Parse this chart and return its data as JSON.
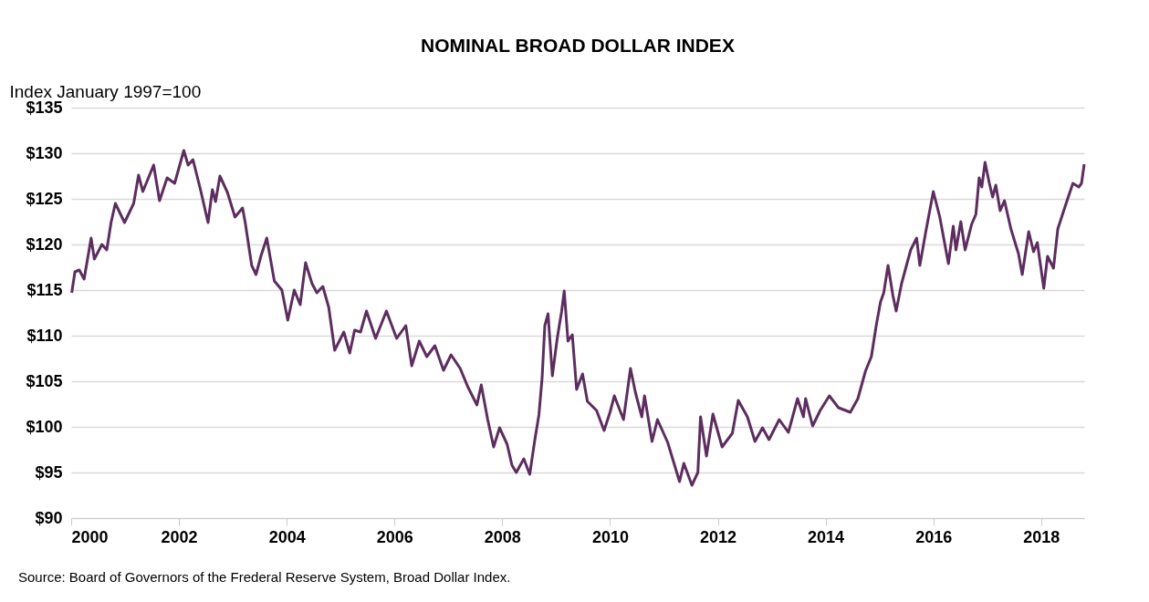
{
  "chart_data": {
    "type": "line",
    "title": "NOMINAL BROAD DOLLAR INDEX",
    "ylabel": "Index January 1997=100",
    "annotations": [
      "Source: Board of Governors of the Frederal Reserve System, Broad Dollar Index."
    ],
    "xlim": [
      2000,
      2018.8
    ],
    "xticks": [
      2000,
      2002,
      2004,
      2006,
      2008,
      2010,
      2012,
      2014,
      2016,
      2018
    ],
    "ylim": [
      90,
      135
    ],
    "yticks": [
      {
        "value": 90,
        "label": "$90"
      },
      {
        "value": 95,
        "label": "$95"
      },
      {
        "value": 100,
        "label": "$100"
      },
      {
        "value": 105,
        "label": "$105"
      },
      {
        "value": 110,
        "label": "$110"
      },
      {
        "value": 115,
        "label": "$115"
      },
      {
        "value": 120,
        "label": "$120"
      },
      {
        "value": 125,
        "label": "$125"
      },
      {
        "value": 130,
        "label": "$130"
      },
      {
        "value": 135,
        "label": "$135"
      }
    ],
    "grid": "y",
    "legend": false,
    "marker": "none",
    "line_style": "solid",
    "series": [
      {
        "color": "#5c2d5e",
        "x": [
          2000.01,
          2000.07,
          2000.15,
          2000.24,
          2000.37,
          2000.43,
          2000.57,
          2000.66,
          2000.74,
          2000.82,
          2000.99,
          2001.16,
          2001.25,
          2001.33,
          2001.53,
          2001.64,
          2001.78,
          2001.92,
          2002.09,
          2002.17,
          2002.26,
          2002.4,
          2002.54,
          2002.62,
          2002.68,
          2002.76,
          2002.9,
          2003.04,
          2003.18,
          2003.23,
          2003.35,
          2003.43,
          2003.52,
          2003.63,
          2003.77,
          2003.91,
          2004.02,
          2004.14,
          2004.25,
          2004.35,
          2004.47,
          2004.56,
          2004.67,
          2004.78,
          2004.89,
          2005.06,
          2005.17,
          2005.26,
          2005.37,
          2005.48,
          2005.65,
          2005.85,
          2006.04,
          2006.21,
          2006.32,
          2006.46,
          2006.6,
          2006.75,
          2006.91,
          2007.05,
          2007.22,
          2007.36,
          2007.53,
          2007.61,
          2007.73,
          2007.84,
          2007.95,
          2008.09,
          2008.18,
          2008.26,
          2008.4,
          2008.51,
          2008.6,
          2008.68,
          2008.74,
          2008.79,
          2008.85,
          2008.93,
          2009.02,
          2009.1,
          2009.15,
          2009.22,
          2009.3,
          2009.38,
          2009.49,
          2009.58,
          2009.75,
          2009.89,
          2010.0,
          2010.08,
          2010.25,
          2010.38,
          2010.47,
          2010.59,
          2010.64,
          2010.78,
          2010.88,
          2011.07,
          2011.29,
          2011.37,
          2011.52,
          2011.63,
          2011.68,
          2011.79,
          2011.91,
          2012.08,
          2012.27,
          2012.38,
          2012.55,
          2012.69,
          2012.83,
          2012.95,
          2013.14,
          2013.31,
          2013.48,
          2013.59,
          2013.63,
          2013.76,
          2013.9,
          2014.07,
          2014.24,
          2014.46,
          2014.6,
          2014.74,
          2014.85,
          2014.94,
          2015.02,
          2015.08,
          2015.16,
          2015.25,
          2015.31,
          2015.41,
          2015.58,
          2015.69,
          2015.75,
          2015.86,
          2016.0,
          2016.12,
          2016.28,
          2016.37,
          2016.42,
          2016.51,
          2016.59,
          2016.71,
          2016.79,
          2016.85,
          2016.9,
          2016.96,
          2017.04,
          2017.1,
          2017.16,
          2017.24,
          2017.32,
          2017.44,
          2017.58,
          2017.65,
          2017.77,
          2017.86,
          2017.93,
          2018.05,
          2018.12,
          2018.23,
          2018.31,
          2018.42,
          2018.51,
          2018.59,
          2018.7,
          2018.75,
          2018.8
        ],
        "values": [
          114.7,
          117.0,
          117.2,
          116.2,
          120.7,
          118.4,
          120.0,
          119.4,
          122.4,
          124.5,
          122.4,
          124.5,
          127.6,
          125.8,
          128.7,
          124.8,
          127.3,
          126.7,
          130.3,
          128.7,
          129.3,
          126.0,
          122.4,
          126.0,
          124.7,
          127.5,
          125.7,
          123.0,
          124.0,
          122.4,
          117.7,
          116.7,
          118.7,
          120.7,
          116.0,
          115.0,
          111.7,
          115.0,
          113.4,
          118.0,
          115.7,
          114.7,
          115.4,
          113.1,
          108.4,
          110.4,
          108.1,
          110.6,
          110.4,
          112.7,
          109.7,
          112.7,
          109.7,
          111.1,
          106.7,
          109.4,
          107.7,
          108.9,
          106.2,
          107.9,
          106.4,
          104.4,
          102.4,
          104.6,
          100.8,
          97.8,
          99.9,
          98.1,
          95.8,
          95.0,
          96.5,
          94.8,
          98.4,
          101.3,
          105.4,
          111.1,
          112.4,
          105.6,
          109.7,
          112.6,
          114.9,
          109.4,
          110.1,
          104.1,
          105.8,
          102.8,
          101.8,
          99.6,
          101.6,
          103.4,
          100.8,
          106.4,
          103.8,
          101.1,
          103.4,
          98.4,
          100.8,
          98.3,
          94.0,
          96.0,
          93.6,
          95.0,
          101.1,
          96.8,
          101.4,
          97.8,
          99.3,
          102.9,
          101.1,
          98.4,
          99.9,
          98.6,
          100.8,
          99.4,
          103.1,
          101.1,
          103.1,
          100.1,
          101.8,
          103.4,
          102.1,
          101.6,
          103.1,
          106.1,
          107.7,
          111.1,
          113.7,
          114.7,
          117.7,
          114.4,
          112.7,
          115.7,
          119.4,
          120.7,
          117.7,
          121.4,
          125.8,
          123.0,
          117.9,
          122.0,
          119.4,
          122.5,
          119.4,
          122.2,
          123.3,
          127.3,
          126.3,
          129.0,
          126.7,
          125.2,
          126.5,
          123.7,
          124.8,
          121.7,
          119.0,
          116.7,
          121.4,
          119.2,
          120.2,
          115.2,
          118.7,
          117.4,
          121.7,
          123.7,
          125.3,
          126.7,
          126.3,
          126.7,
          128.8
        ]
      }
    ]
  }
}
